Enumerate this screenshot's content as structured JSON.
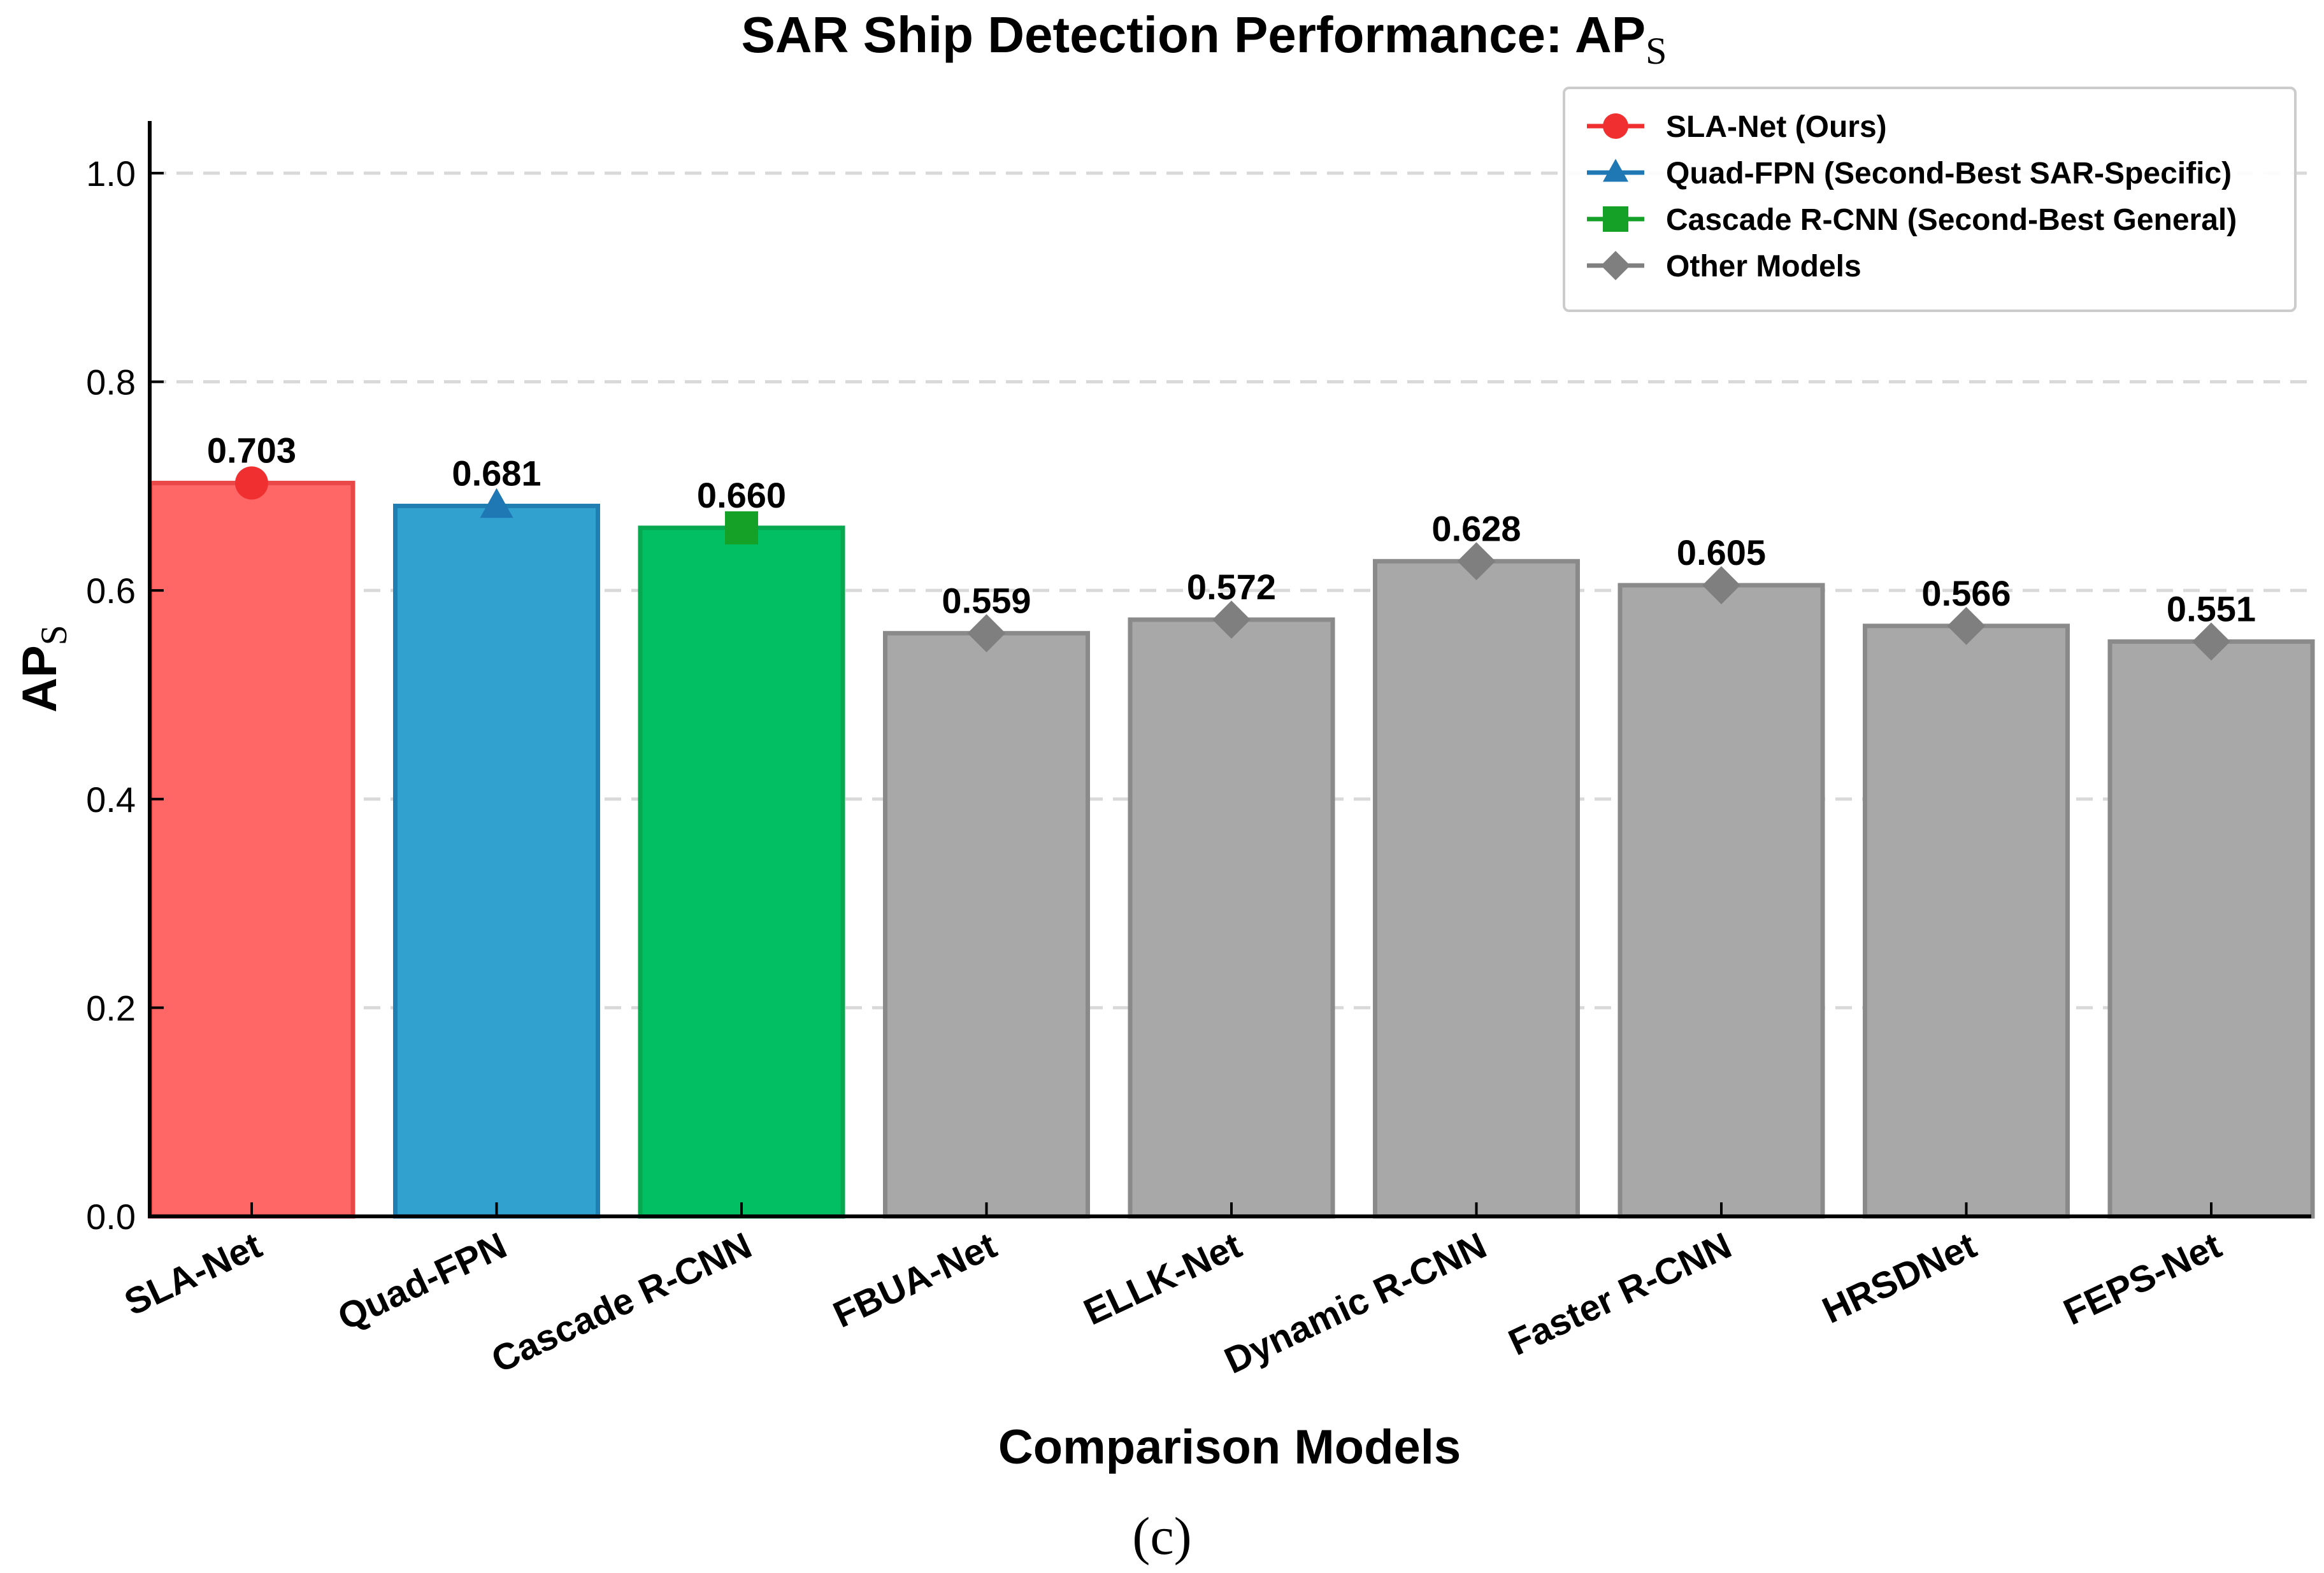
{
  "chart_data": {
    "type": "bar",
    "title": "SAR Ship Detection Performance: AP",
    "title_subscript": "S",
    "xlabel": "Comparison Models",
    "ylabel": "AP",
    "ylabel_subscript": "S",
    "ylim": [
      0,
      1.05
    ],
    "yticks": [
      "0.0",
      "0.2",
      "0.4",
      "0.6",
      "0.8",
      "1.0"
    ],
    "grid": "horizontal dashed",
    "legend_position": "top-right",
    "categories": [
      "SLA-Net",
      "Quad-FPN",
      "Cascade R-CNN",
      "FBUA-Net",
      "ELLK-Net",
      "Dynamic R-CNN",
      "Faster R-CNN",
      "HRSDNet",
      "FEPS-Net"
    ],
    "values": [
      0.703,
      0.681,
      0.66,
      0.559,
      0.572,
      0.628,
      0.605,
      0.566,
      0.551
    ],
    "value_labels": [
      "0.703",
      "0.681",
      "0.660",
      "0.559",
      "0.572",
      "0.628",
      "0.605",
      "0.566",
      "0.551"
    ],
    "groups": [
      "ours",
      "sar",
      "general",
      "other",
      "other",
      "other",
      "other",
      "other",
      "other"
    ],
    "legend": [
      {
        "group": "ours",
        "label": "SLA-Net (Ours)",
        "marker": "circle"
      },
      {
        "group": "sar",
        "label": "Quad-FPN (Second-Best SAR-Specific)",
        "marker": "triangle"
      },
      {
        "group": "general",
        "label": "Cascade R-CNN (Second-Best General)",
        "marker": "square"
      },
      {
        "group": "other",
        "label": "Other Models",
        "marker": "diamond"
      }
    ],
    "colors": {
      "ours": {
        "fill": "#ff6666",
        "edge": "#e84848",
        "marker": "#f03030"
      },
      "sar": {
        "fill": "#31a1cf",
        "edge": "#1f7fb2",
        "marker": "#1f77b4"
      },
      "general": {
        "fill": "#02bf63",
        "edge": "#07a84f",
        "marker": "#15a028"
      },
      "other": {
        "fill": "#a8a8a8",
        "edge": "#8a8a8a",
        "marker": "#7f7f7f"
      }
    }
  },
  "caption": "(c)"
}
